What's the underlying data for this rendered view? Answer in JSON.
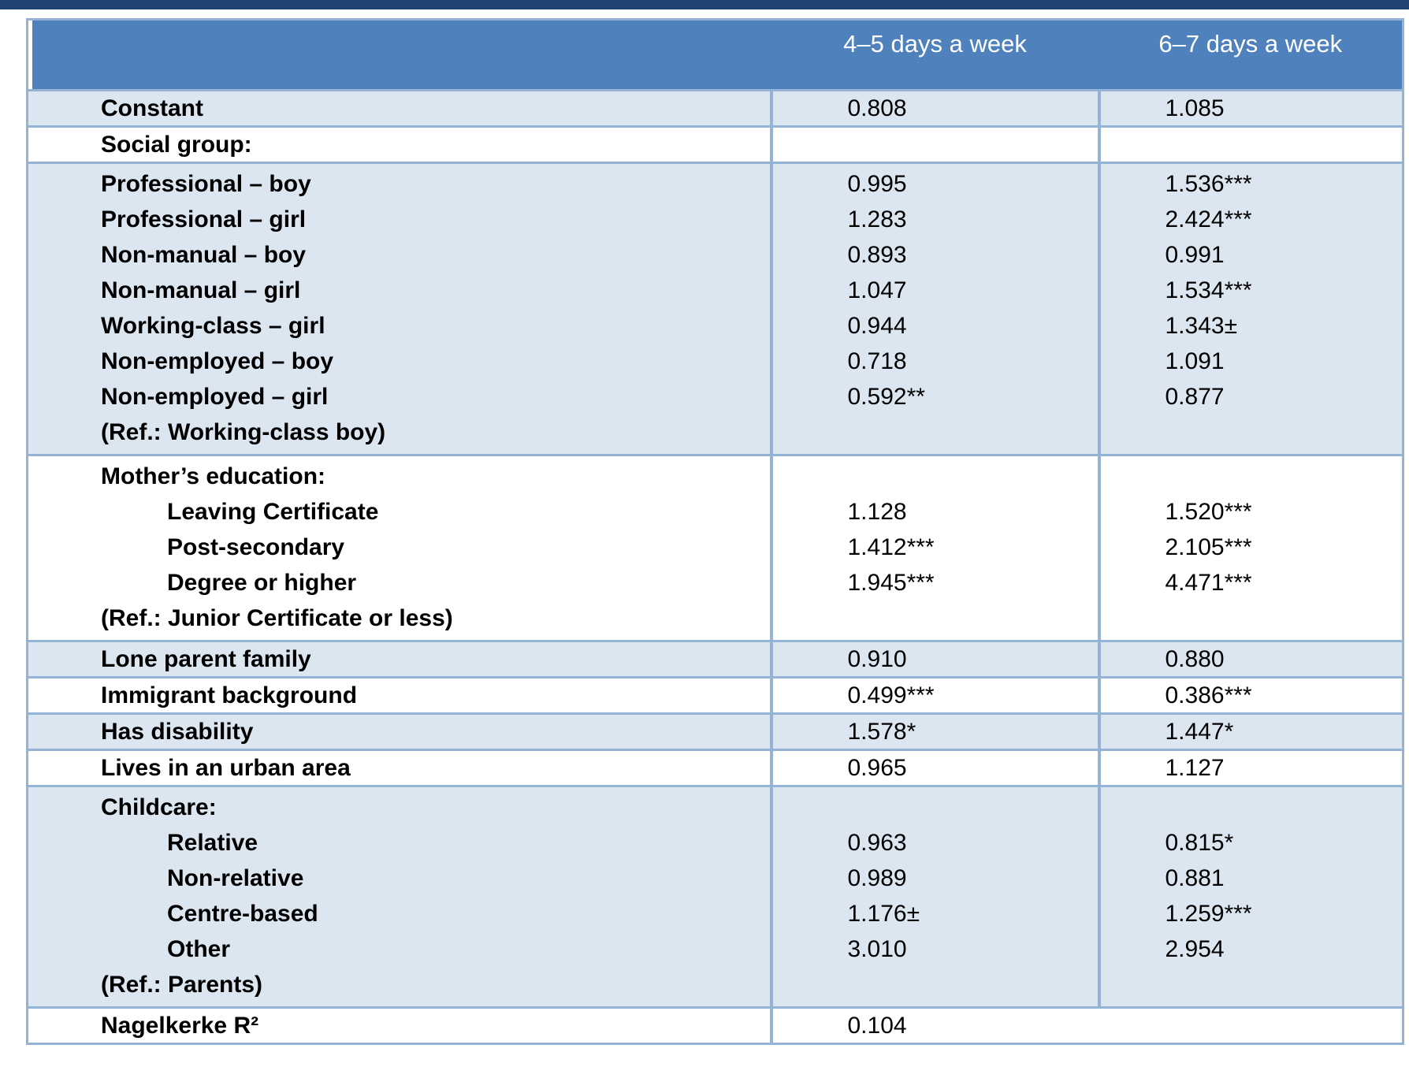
{
  "colors": {
    "top_bar": "#1f4473",
    "header_bg": "#4f81bd",
    "header_text": "#ffffff",
    "row_shaded": "#dce6f1",
    "row_plain": "#ffffff",
    "border": "#95b3d7",
    "text": "#000000"
  },
  "table": {
    "header": {
      "col1": "",
      "col2": "4–5 days a week",
      "col3": "6–7 days a week"
    },
    "rows": [
      {
        "type": "single",
        "shaded": true,
        "lines": [
          {
            "label": "Constant",
            "indent": false,
            "v1": "0.808",
            "v2": "1.085"
          }
        ]
      },
      {
        "type": "single",
        "shaded": false,
        "lines": [
          {
            "label": "Social group:",
            "indent": false,
            "v1": "",
            "v2": ""
          }
        ]
      },
      {
        "type": "block",
        "shaded": true,
        "lines": [
          {
            "label": "Professional – boy",
            "indent": false,
            "v1": "0.995",
            "v2": "1.536***"
          },
          {
            "label": "Professional – girl",
            "indent": false,
            "v1": "1.283",
            "v2": "2.424***"
          },
          {
            "label": "Non-manual – boy",
            "indent": false,
            "v1": "0.893",
            "v2": "0.991"
          },
          {
            "label": "Non-manual – girl",
            "indent": false,
            "v1": "1.047",
            "v2": "1.534***"
          },
          {
            "label": "Working-class – girl",
            "indent": false,
            "v1": "0.944",
            "v2": "1.343±"
          },
          {
            "label": "Non-employed – boy",
            "indent": false,
            "v1": "0.718",
            "v2": "1.091"
          },
          {
            "label": "Non-employed – girl",
            "indent": false,
            "v1": "0.592**",
            "v2": "0.877"
          },
          {
            "label": "(Ref.: Working-class boy)",
            "indent": false,
            "v1": "",
            "v2": ""
          }
        ]
      },
      {
        "type": "block",
        "shaded": false,
        "lines": [
          {
            "label": "Mother’s education:",
            "indent": false,
            "v1": "",
            "v2": ""
          },
          {
            "label": "Leaving Certificate",
            "indent": true,
            "v1": "1.128",
            "v2": "1.520***"
          },
          {
            "label": "Post-secondary",
            "indent": true,
            "v1": "1.412***",
            "v2": "2.105***"
          },
          {
            "label": "Degree or higher",
            "indent": true,
            "v1": "1.945***",
            "v2": "4.471***"
          },
          {
            "label": "(Ref.: Junior Certificate or less)",
            "indent": false,
            "v1": "",
            "v2": ""
          }
        ]
      },
      {
        "type": "single",
        "shaded": true,
        "lines": [
          {
            "label": "Lone parent family",
            "indent": false,
            "v1": "0.910",
            "v2": "0.880"
          }
        ]
      },
      {
        "type": "single",
        "shaded": false,
        "lines": [
          {
            "label": "Immigrant background",
            "indent": false,
            "v1": "0.499***",
            "v2": "0.386***"
          }
        ]
      },
      {
        "type": "single",
        "shaded": true,
        "lines": [
          {
            "label": "Has disability",
            "indent": false,
            "v1": "1.578*",
            "v2": "1.447*"
          }
        ]
      },
      {
        "type": "single",
        "shaded": false,
        "lines": [
          {
            "label": "Lives in an urban area",
            "indent": false,
            "v1": "0.965",
            "v2": "1.127"
          }
        ]
      },
      {
        "type": "block",
        "shaded": true,
        "lines": [
          {
            "label": "Childcare:",
            "indent": false,
            "v1": "",
            "v2": ""
          },
          {
            "label": "Relative",
            "indent": true,
            "v1": "0.963",
            "v2": "0.815*"
          },
          {
            "label": "Non-relative",
            "indent": true,
            "v1": "0.989",
            "v2": "0.881"
          },
          {
            "label": "Centre-based",
            "indent": true,
            "v1": "1.176±",
            "v2": "1.259***"
          },
          {
            "label": "Other",
            "indent": true,
            "v1": "3.010",
            "v2": "2.954"
          },
          {
            "label": "(Ref.:  Parents)",
            "indent": false,
            "v1": "",
            "v2": ""
          }
        ]
      },
      {
        "type": "single",
        "shaded": false,
        "merged_value": true,
        "lines": [
          {
            "label": "Nagelkerke R²",
            "indent": false,
            "v1": "0.104",
            "v2": null
          }
        ]
      }
    ]
  }
}
